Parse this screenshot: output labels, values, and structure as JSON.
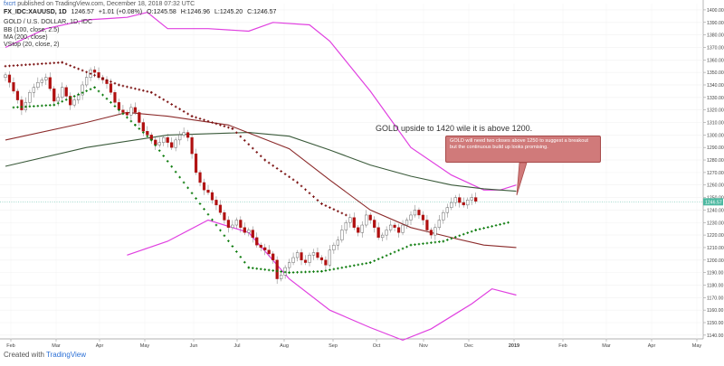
{
  "header": {
    "author": "fxcrt",
    "published": "published on TradingView.com, December 18, 2018 07:32 UTC",
    "symbol": "FX_IDC:XAUUSD, 1D",
    "last": "1246.57",
    "change": "+1.01 (+0.08%)",
    "ohlc": [
      "O:1245.58",
      "H:1246.96",
      "L:1245.20",
      "C:1246.57"
    ],
    "title": "GOLD / U.S. DOLLAR, 1D, IDC",
    "indicators": [
      "BB (100, close, 2.5)",
      "MA (200, close)",
      "VStop (20, close, 2)"
    ]
  },
  "annotations": {
    "main_text": "GOLD upside to 1420 wile it is above 1200.",
    "callout_text": "GOLD will need two closes above 1250 to suggest a breakout but the continuous build up looks promising."
  },
  "footer": {
    "created_with": "Created with",
    "brand": "TradingView"
  },
  "colors": {
    "bb": "#e040e0",
    "ma": "#8b2a2a",
    "bb_mid": "#3a5a3a",
    "up": "#1f7a1f",
    "down": "#b01010",
    "vstop_up": "#0a7a0a",
    "vstop_down": "#7a1010",
    "price_label": "#4cb8a0",
    "callout": "#d07a7a"
  },
  "chart_data": {
    "type": "candlestick",
    "y_ticks": [
      1140,
      1150,
      1160,
      1170,
      1180,
      1190,
      1200,
      1210,
      1220,
      1230,
      1240,
      1250,
      1260,
      1270,
      1280,
      1290,
      1300,
      1310,
      1320,
      1330,
      1340,
      1350,
      1360,
      1370,
      1380,
      1390,
      1400
    ],
    "ylim": [
      1137,
      1405
    ],
    "x_labels": [
      "Feb",
      "Mar",
      "Apr",
      "May",
      "Jun",
      "Jul",
      "Aug",
      "Sep",
      "Oct",
      "Nov",
      "Dec",
      "2019",
      "Feb",
      "Mar",
      "Apr",
      "May"
    ],
    "current_price_label": "1246.57",
    "bb_upper": [
      [
        0,
        1370
      ],
      [
        10,
        1385
      ],
      [
        20,
        1392
      ],
      [
        30,
        1394
      ],
      [
        35,
        1398
      ],
      [
        40,
        1385
      ],
      [
        50,
        1385
      ],
      [
        60,
        1383
      ],
      [
        66,
        1390
      ],
      [
        75,
        1388
      ],
      [
        80,
        1375
      ],
      [
        90,
        1335
      ],
      [
        100,
        1290
      ],
      [
        110,
        1268
      ],
      [
        118,
        1256
      ],
      [
        122,
        1256
      ],
      [
        126,
        1260
      ]
    ],
    "bb_mid": [
      [
        0,
        1275
      ],
      [
        20,
        1290
      ],
      [
        40,
        1300
      ],
      [
        60,
        1302
      ],
      [
        70,
        1299
      ],
      [
        80,
        1288
      ],
      [
        90,
        1276
      ],
      [
        100,
        1267
      ],
      [
        110,
        1260
      ],
      [
        118,
        1257
      ],
      [
        126,
        1255
      ]
    ],
    "bb_lower": [
      [
        30,
        1204
      ],
      [
        40,
        1215
      ],
      [
        50,
        1232
      ],
      [
        60,
        1222
      ],
      [
        70,
        1185
      ],
      [
        80,
        1160
      ],
      [
        90,
        1146
      ],
      [
        98,
        1136
      ],
      [
        105,
        1145
      ],
      [
        115,
        1165
      ],
      [
        120,
        1177
      ],
      [
        126,
        1172
      ]
    ],
    "ma200": [
      [
        0,
        1296
      ],
      [
        20,
        1310
      ],
      [
        30,
        1318
      ],
      [
        40,
        1315
      ],
      [
        55,
        1308
      ],
      [
        70,
        1289
      ],
      [
        80,
        1264
      ],
      [
        90,
        1240
      ],
      [
        100,
        1226
      ],
      [
        110,
        1218
      ],
      [
        118,
        1212
      ],
      [
        126,
        1210
      ]
    ],
    "candles_close": [
      1348,
      1342,
      1335,
      1328,
      1320,
      1326,
      1334,
      1338,
      1342,
      1344,
      1346,
      1337,
      1327,
      1330,
      1338,
      1331,
      1324,
      1328,
      1332,
      1340,
      1346,
      1352,
      1350,
      1346,
      1344,
      1341,
      1334,
      1326,
      1320,
      1318,
      1316,
      1322,
      1318,
      1310,
      1303,
      1300,
      1296,
      1292,
      1294,
      1298,
      1294,
      1290,
      1296,
      1300,
      1302,
      1298,
      1285,
      1270,
      1262,
      1256,
      1254,
      1248,
      1244,
      1238,
      1232,
      1226,
      1228,
      1232,
      1226,
      1222,
      1224,
      1218,
      1212,
      1210,
      1208,
      1205,
      1200,
      1185,
      1188,
      1194,
      1198,
      1202,
      1206,
      1200,
      1198,
      1204,
      1206,
      1202,
      1200,
      1196,
      1208,
      1212,
      1216,
      1224,
      1230,
      1234,
      1226,
      1222,
      1228,
      1236,
      1232,
      1226,
      1218,
      1220,
      1224,
      1228,
      1226,
      1222,
      1228,
      1232,
      1236,
      1240,
      1236,
      1232,
      1224,
      1220,
      1226,
      1232,
      1238,
      1242,
      1246,
      1250,
      1246,
      1244,
      1248,
      1250,
      1247
    ],
    "vstop_upper": [
      [
        0,
        1355
      ],
      [
        14,
        1358
      ],
      [
        28,
        1340
      ],
      [
        36,
        1334
      ],
      [
        46,
        1315
      ],
      [
        56,
        1305
      ],
      [
        64,
        1280
      ],
      [
        72,
        1262
      ],
      [
        78,
        1245
      ],
      [
        84,
        1236
      ]
    ],
    "vstop_lower": [
      [
        2,
        1322
      ],
      [
        12,
        1324
      ],
      [
        22,
        1338
      ],
      [
        32,
        1308
      ],
      [
        36,
        1296
      ],
      [
        60,
        1194
      ],
      [
        70,
        1190
      ],
      [
        78,
        1191
      ],
      [
        90,
        1198
      ],
      [
        100,
        1212
      ],
      [
        108,
        1215
      ],
      [
        116,
        1224
      ],
      [
        124,
        1230
      ]
    ]
  }
}
